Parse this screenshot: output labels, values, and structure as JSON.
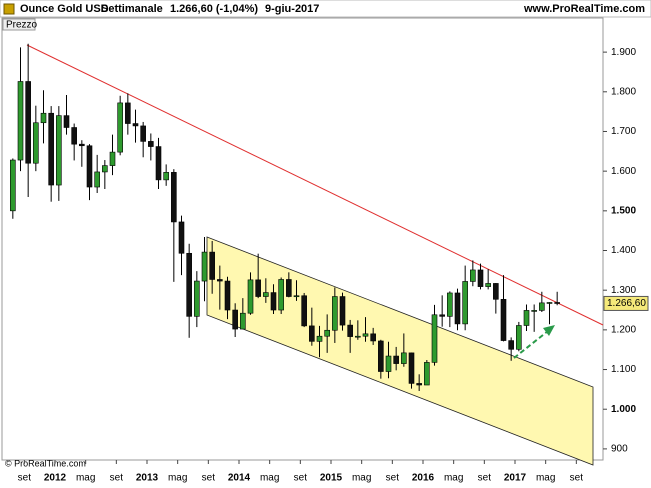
{
  "chart_data": {
    "type": "candlestick",
    "title": "Ounce Gold USD",
    "period": "Settimanale",
    "price_change": "1.266,60 (-1,04%)",
    "date": "9-giu-2017",
    "site": "www.ProRealTime.com",
    "panel_label": "Prezzo",
    "copyright": "© ProRealTime.com",
    "last_price": 1266.6,
    "last_price_label": "1.266,60",
    "up_color": "#2e9a2e",
    "down_color": "#111111",
    "x": [
      "2011-07",
      "2011-08",
      "2011-09",
      "2011-10",
      "2011-11",
      "2011-12",
      "2012-01",
      "2012-02",
      "2012-03",
      "2012-04",
      "2012-05",
      "2012-06",
      "2012-07",
      "2012-08",
      "2012-09",
      "2012-10",
      "2012-11",
      "2012-12",
      "2013-01",
      "2013-02",
      "2013-03",
      "2013-04",
      "2013-05",
      "2013-06",
      "2013-07",
      "2013-08",
      "2013-09",
      "2013-10",
      "2013-11",
      "2013-12",
      "2014-01",
      "2014-02",
      "2014-03",
      "2014-04",
      "2014-05",
      "2014-06",
      "2014-07",
      "2014-08",
      "2014-09",
      "2014-10",
      "2014-11",
      "2014-12",
      "2015-01",
      "2015-02",
      "2015-03",
      "2015-04",
      "2015-05",
      "2015-06",
      "2015-07",
      "2015-08",
      "2015-09",
      "2015-10",
      "2015-11",
      "2015-12",
      "2016-01",
      "2016-02",
      "2016-03",
      "2016-04",
      "2016-05",
      "2016-06",
      "2016-07",
      "2016-08",
      "2016-09",
      "2016-10",
      "2016-11",
      "2016-12",
      "2017-01",
      "2017-02",
      "2017-03",
      "2017-04",
      "2017-05",
      "2017-06"
    ],
    "open": [
      1500,
      1628,
      1826,
      1620,
      1722,
      1746,
      1565,
      1740,
      1710,
      1668,
      1664,
      1560,
      1598,
      1614,
      1648,
      1772,
      1720,
      1714,
      1675,
      1662,
      1578,
      1597,
      1472,
      1393,
      1234,
      1323,
      1396,
      1327,
      1323,
      1250,
      1202,
      1242,
      1326,
      1284,
      1294,
      1250,
      1327,
      1284,
      1286,
      1210,
      1171,
      1184,
      1199,
      1284,
      1212,
      1183,
      1184,
      1190,
      1172,
      1095,
      1134,
      1115,
      1142,
      1065,
      1061,
      1118,
      1238,
      1234,
      1293,
      1215,
      1322,
      1351,
      1309,
      1317,
      1277,
      1173,
      1151,
      1211,
      1249,
      1249,
      1268,
      1269
    ],
    "high": [
      1632,
      1912,
      1921,
      1765,
      1804,
      1764,
      1764,
      1792,
      1720,
      1678,
      1668,
      1641,
      1628,
      1692,
      1790,
      1796,
      1755,
      1724,
      1695,
      1684,
      1617,
      1605,
      1488,
      1417,
      1348,
      1434,
      1424,
      1362,
      1334,
      1267,
      1280,
      1345,
      1392,
      1330,
      1315,
      1332,
      1345,
      1325,
      1293,
      1256,
      1210,
      1239,
      1307,
      1294,
      1225,
      1224,
      1232,
      1205,
      1175,
      1170,
      1157,
      1191,
      1143,
      1088,
      1124,
      1263,
      1287,
      1297,
      1304,
      1362,
      1375,
      1367,
      1353,
      1318,
      1338,
      1181,
      1220,
      1264,
      1264,
      1296,
      1270,
      1296
    ],
    "low": [
      1480,
      1600,
      1535,
      1600,
      1670,
      1523,
      1525,
      1692,
      1627,
      1611,
      1527,
      1545,
      1555,
      1590,
      1640,
      1692,
      1672,
      1635,
      1627,
      1555,
      1563,
      1321,
      1338,
      1180,
      1207,
      1272,
      1291,
      1251,
      1227,
      1182,
      1202,
      1238,
      1280,
      1268,
      1240,
      1240,
      1282,
      1273,
      1207,
      1160,
      1131,
      1142,
      1167,
      1198,
      1142,
      1175,
      1170,
      1162,
      1077,
      1078,
      1098,
      1107,
      1052,
      1046,
      1061,
      1110,
      1208,
      1207,
      1199,
      1199,
      1310,
      1302,
      1302,
      1241,
      1171,
      1122,
      1146,
      1197,
      1195,
      1245,
      1214,
      1262
    ],
    "close": [
      1628,
      1826,
      1620,
      1722,
      1746,
      1565,
      1740,
      1710,
      1668,
      1664,
      1560,
      1598,
      1614,
      1648,
      1772,
      1720,
      1714,
      1675,
      1662,
      1578,
      1597,
      1472,
      1393,
      1234,
      1323,
      1396,
      1327,
      1323,
      1250,
      1202,
      1242,
      1326,
      1284,
      1294,
      1250,
      1327,
      1284,
      1286,
      1210,
      1171,
      1184,
      1199,
      1284,
      1212,
      1183,
      1184,
      1190,
      1172,
      1095,
      1134,
      1115,
      1142,
      1065,
      1061,
      1118,
      1238,
      1234,
      1293,
      1215,
      1322,
      1351,
      1309,
      1317,
      1277,
      1173,
      1151,
      1211,
      1249,
      1249,
      1268,
      1269,
      1266.6
    ],
    "ylim": [
      872,
      1986
    ],
    "yticks": [
      {
        "value": 1900,
        "label": "1.900"
      },
      {
        "value": 1800,
        "label": "1.800"
      },
      {
        "value": 1700,
        "label": "1.700"
      },
      {
        "value": 1600,
        "label": "1.600"
      },
      {
        "value": 1500,
        "label": "1.500"
      },
      {
        "value": 1400,
        "label": "1.400"
      },
      {
        "value": 1300,
        "label": "1.300"
      },
      {
        "value": 1200,
        "label": "1.200"
      },
      {
        "value": 1100,
        "label": "1.100"
      },
      {
        "value": 1000,
        "label": "1.000"
      },
      900
    ],
    "xticks": [
      {
        "value": "2011-09",
        "label": "set"
      },
      {
        "value": "2012-01",
        "label": "2012"
      },
      {
        "value": "2012-05",
        "label": "mag"
      },
      {
        "value": "2012-09",
        "label": "set"
      },
      {
        "value": "2013-01",
        "label": "2013"
      },
      {
        "value": "2013-05",
        "label": "mag"
      },
      {
        "value": "2013-09",
        "label": "set"
      },
      {
        "value": "2014-01",
        "label": "2014"
      },
      {
        "value": "2014-05",
        "label": "mag"
      },
      {
        "value": "2014-09",
        "label": "set"
      },
      {
        "value": "2015-01",
        "label": "2015"
      },
      {
        "value": "2015-05",
        "label": "mag"
      },
      {
        "value": "2015-09",
        "label": "set"
      },
      {
        "value": "2016-01",
        "label": "2016"
      },
      {
        "value": "2016-05",
        "label": "mag"
      },
      {
        "value": "2016-09",
        "label": "set"
      },
      {
        "value": "2017-01",
        "label": "2017"
      },
      {
        "value": "2017-05",
        "label": "mag"
      },
      {
        "value": "2017-09",
        "label": "set"
      }
    ]
  }
}
